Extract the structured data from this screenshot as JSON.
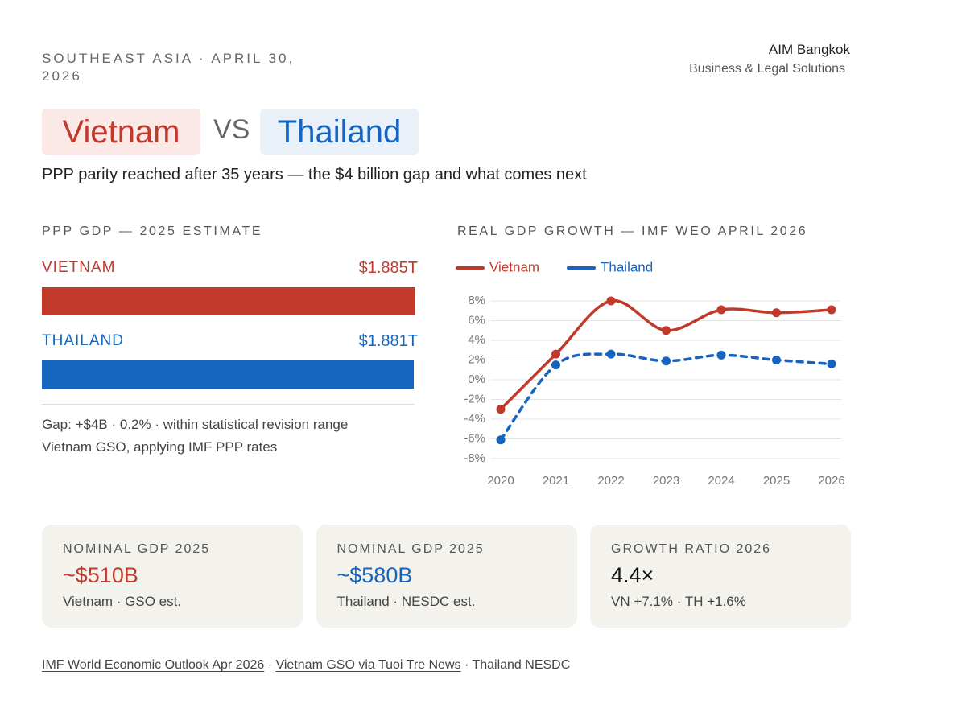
{
  "header": {
    "kicker": "SOUTHEAST ASIA · APRIL 30, 2026",
    "brand": "AIM Bangkok",
    "brand_sub": "Business & Legal Solutions",
    "title_a": "Vietnam",
    "vs": "VS",
    "title_b": "Thailand",
    "subtitle": "PPP parity reached after 35 years — the $4 billion gap and what comes next"
  },
  "chart_data": [
    {
      "type": "hbar",
      "title": "PPP GDP — 2025 ESTIMATE",
      "categories": [
        "VIETNAM",
        "THAILAND"
      ],
      "values": [
        1.885,
        1.881
      ],
      "value_labels": [
        "$1.885T",
        "$1.881T"
      ],
      "colors": [
        "#c0392b",
        "#1565c0"
      ],
      "notes": [
        "Gap: +$4B · 0.2% · within statistical revision range",
        "Vietnam GSO, applying IMF PPP rates"
      ]
    },
    {
      "type": "line",
      "title": "REAL GDP GROWTH — IMF WEO APRIL 2026",
      "x": [
        2020,
        2021,
        2022,
        2023,
        2024,
        2025,
        2026
      ],
      "series": [
        {
          "name": "Vietnam",
          "color": "#c0392b",
          "dashed": false,
          "values": [
            -3.0,
            2.6,
            8.0,
            5.0,
            7.1,
            6.8,
            7.1
          ]
        },
        {
          "name": "Thailand",
          "color": "#1565c0",
          "dashed": true,
          "values": [
            -6.1,
            1.5,
            2.6,
            1.9,
            2.5,
            2.0,
            1.6
          ]
        }
      ],
      "ylim": [
        -8,
        8
      ],
      "yticks": [
        {
          "value": -8,
          "label": "-8%"
        },
        {
          "value": -6,
          "label": "-6%"
        },
        {
          "value": -4,
          "label": "-4%"
        },
        {
          "value": -2,
          "label": "-2%"
        },
        {
          "value": 0,
          "label": "0%"
        },
        {
          "value": 2,
          "label": "2%"
        },
        {
          "value": 4,
          "label": "4%"
        },
        {
          "value": 6,
          "label": "6%"
        },
        {
          "value": 8,
          "label": "8%"
        }
      ],
      "grid": true,
      "legend": "top-left"
    }
  ],
  "cards": [
    {
      "label": "NOMINAL GDP 2025",
      "value": "~$510B",
      "note": "Vietnam · GSO est."
    },
    {
      "label": "NOMINAL GDP 2025",
      "value": "~$580B",
      "note": "Thailand · NESDC est."
    },
    {
      "label": "GROWTH RATIO 2026",
      "value": "4.4×",
      "note": "VN +7.1% · TH +1.6%"
    }
  ],
  "sources": {
    "separator": " · ",
    "items": [
      "IMF World Economic Outlook Apr 2026",
      "Vietnam GSO via Tuoi Tre News",
      "Thailand NESDC"
    ]
  }
}
